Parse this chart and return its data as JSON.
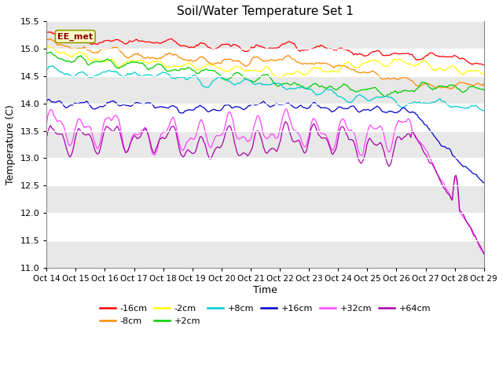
{
  "title": "Soil/Water Temperature Set 1",
  "xlabel": "Time",
  "ylabel": "Temperature (C)",
  "ylim": [
    11.0,
    15.5
  ],
  "yticks": [
    11.0,
    11.5,
    12.0,
    12.5,
    13.0,
    13.5,
    14.0,
    14.5,
    15.0,
    15.5
  ],
  "annotation": "EE_met",
  "x_tick_labels": [
    "Oct 14",
    "Oct 15",
    "Oct 16",
    "Oct 17",
    "Oct 18",
    "Oct 19",
    "Oct 20",
    "Oct 21",
    "Oct 22",
    "Oct 23",
    "Oct 24",
    "Oct 25",
    "Oct 26",
    "Oct 27",
    "Oct 28",
    "Oct 29"
  ],
  "bg_color": "#ffffff",
  "plot_bg": "#ffffff",
  "stripe_color": "#e8e8e8",
  "series": [
    {
      "label": "-16cm",
      "color": "#ff0000"
    },
    {
      "label": "-8cm",
      "color": "#ff8800"
    },
    {
      "label": "-2cm",
      "color": "#ffff00"
    },
    {
      "label": "+2cm",
      "color": "#00cc00"
    },
    {
      "label": "+8cm",
      "color": "#00cccc"
    },
    {
      "label": "+16cm",
      "color": "#0000cc"
    },
    {
      "label": "+32cm",
      "color": "#ff44ff"
    },
    {
      "label": "+64cm",
      "color": "#aa00aa"
    }
  ],
  "legend_items": [
    [
      "-16cm",
      "#ff0000"
    ],
    [
      "-8cm",
      "#ff8800"
    ],
    [
      "-2cm",
      "#ffff00"
    ],
    [
      "+2cm",
      "#00cc00"
    ],
    [
      "+8cm",
      "#00cccc"
    ],
    [
      "+16cm",
      "#0000cc"
    ],
    [
      "+32cm",
      "#ff44ff"
    ],
    [
      "+64cm",
      "#aa00aa"
    ]
  ]
}
